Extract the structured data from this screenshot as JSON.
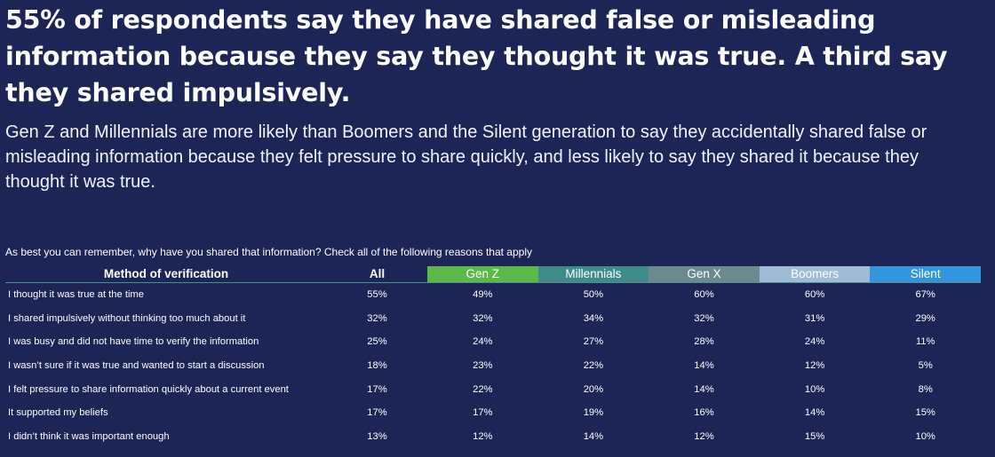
{
  "headline": "55% of respondents say they have shared false or misleading information because they say they thought it was true. A third say they shared impulsively.",
  "subheadline": "Gen Z and Millennials are more likely than Boomers and the Silent generation to say they accidentally shared false or misleading information because they felt pressure to share quickly, and less likely to say they shared it because they thought it was true.",
  "question": "As best you can remember, why have you shared that information? Check all of the following reasons that apply",
  "table": {
    "column_headers": {
      "method": "Method of verification",
      "all": "All"
    },
    "groups": [
      {
        "name": "Gen Z",
        "color": "#5ab948"
      },
      {
        "name": "Millennials",
        "color": "#3d8c8a"
      },
      {
        "name": "Gen X",
        "color": "#6c8a8e"
      },
      {
        "name": "Boomers",
        "color": "#9fbcd4"
      },
      {
        "name": "Silent",
        "color": "#3396dc"
      }
    ]
  },
  "chart_data": {
    "type": "table",
    "title": "55% of respondents say they have shared false or misleading information because they say they thought it was true. A third say they shared impulsively.",
    "subtitle": "Gen Z and Millennials are more likely than Boomers and the Silent generation to say they accidentally shared false or misleading information because they felt pressure to share quickly, and less likely to say they shared it because they thought it was true.",
    "columns": [
      "Method of verification",
      "All",
      "Gen Z",
      "Millennials",
      "Gen X",
      "Boomers",
      "Silent"
    ],
    "rows": [
      {
        "reason": "I thought it was true at the time",
        "values": [
          "55%",
          "49%",
          "50%",
          "60%",
          "60%",
          "67%"
        ]
      },
      {
        "reason": "I shared impulsively without thinking too much about it",
        "values": [
          "32%",
          "32%",
          "34%",
          "32%",
          "31%",
          "29%"
        ]
      },
      {
        "reason": "I was busy and did not have time to verify the information",
        "values": [
          "25%",
          "24%",
          "27%",
          "28%",
          "24%",
          "11%"
        ]
      },
      {
        "reason": "I wasn’t sure if it was true and wanted to start a discussion",
        "values": [
          "18%",
          "23%",
          "22%",
          "14%",
          "12%",
          "5%"
        ]
      },
      {
        "reason": "I felt pressure to share information quickly about a current event",
        "values": [
          "17%",
          "22%",
          "20%",
          "14%",
          "10%",
          "8%"
        ]
      },
      {
        "reason": "It supported my beliefs",
        "values": [
          "17%",
          "17%",
          "19%",
          "16%",
          "14%",
          "15%"
        ]
      },
      {
        "reason": "I didn’t think it was important enough",
        "values": [
          "13%",
          "12%",
          "14%",
          "12%",
          "15%",
          "10%"
        ]
      }
    ]
  }
}
